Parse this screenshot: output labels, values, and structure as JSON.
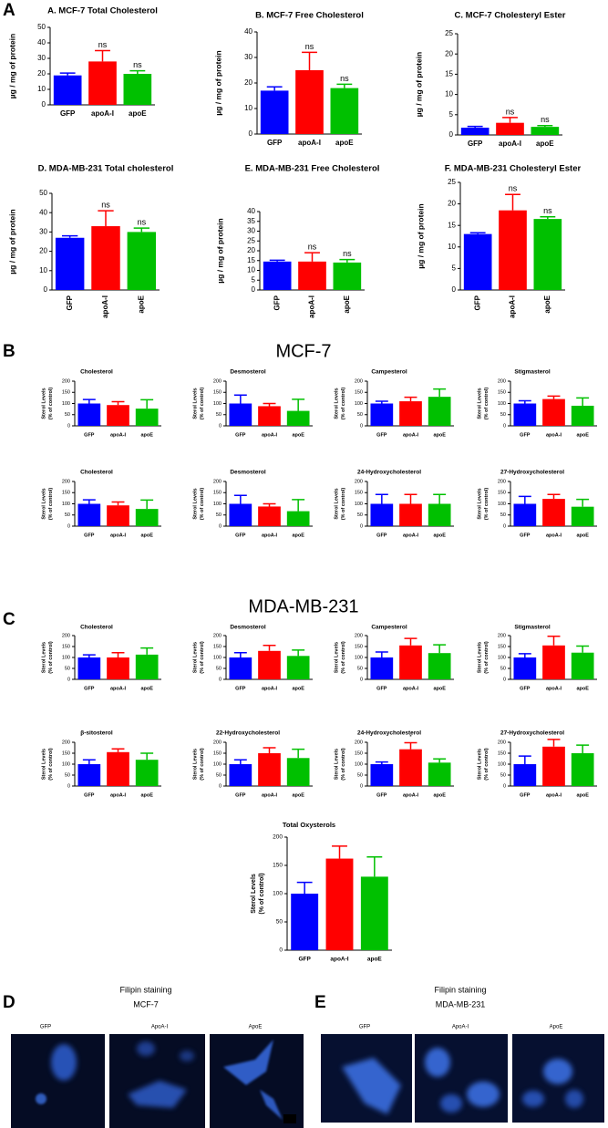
{
  "panel_labels": [
    "A",
    "B",
    "C",
    "D",
    "E"
  ],
  "section_titles": [
    "MCF-7",
    "MDA-MB-231"
  ],
  "chart_data": [
    {
      "type": "bar",
      "title": "A. MCF-7 Total Cholesterol",
      "y_label": "µg / mg of protein",
      "categories": [
        "GFP",
        "apoA-I",
        "apoE"
      ],
      "values": [
        19,
        28,
        20
      ],
      "errors": [
        1.5,
        7,
        2
      ],
      "annotations": [
        null,
        "ns",
        "ns"
      ],
      "colors": [
        "#0000ff",
        "#ff0000",
        "#00c000"
      ],
      "ylim": [
        0,
        50
      ],
      "yticks": [
        0,
        10,
        20,
        30,
        40,
        50
      ]
    },
    {
      "type": "bar",
      "title": "B. MCF-7 Free Cholesterol",
      "y_label": "µg / mg of protein",
      "categories": [
        "GFP",
        "apoA-I",
        "apoE"
      ],
      "values": [
        17,
        25,
        18
      ],
      "errors": [
        1.5,
        7,
        1.5
      ],
      "annotations": [
        null,
        "ns",
        "ns"
      ],
      "colors": [
        "#0000ff",
        "#ff0000",
        "#00c000"
      ],
      "ylim": [
        0,
        40
      ],
      "yticks": [
        0,
        10,
        20,
        30,
        40
      ]
    },
    {
      "type": "bar",
      "title": "C. MCF-7 Cholesteryl Ester",
      "y_label": "µg / mg of protein",
      "categories": [
        "GFP",
        "apoA-I",
        "apoE"
      ],
      "values": [
        1.8,
        3,
        2
      ],
      "errors": [
        0.3,
        1.3,
        0.3
      ],
      "annotations": [
        null,
        "ns",
        "ns"
      ],
      "colors": [
        "#0000ff",
        "#ff0000",
        "#00c000"
      ],
      "ylim": [
        0,
        25
      ],
      "yticks": [
        0,
        5,
        10,
        15,
        20,
        25
      ]
    },
    {
      "type": "bar",
      "title": "D. MDA-MB-231 Total cholesterol",
      "y_label": "µg / mg of protein",
      "categories": [
        "GFP",
        "apoA-I",
        "apoE"
      ],
      "values": [
        27,
        33,
        30
      ],
      "errors": [
        1,
        8,
        2
      ],
      "annotations": [
        null,
        "ns",
        "ns"
      ],
      "colors": [
        "#0000ff",
        "#ff0000",
        "#00c000"
      ],
      "ylim": [
        0,
        50
      ],
      "yticks": [
        0,
        10,
        20,
        30,
        40,
        50
      ]
    },
    {
      "type": "bar",
      "title": "E. MDA-MB-231 Free Cholesterol",
      "y_label": "µg / mg of protein",
      "categories": [
        "GFP",
        "apoA-I",
        "apoE"
      ],
      "values": [
        14.5,
        14.5,
        14
      ],
      "errors": [
        0.7,
        4.5,
        1.5
      ],
      "annotations": [
        null,
        "ns",
        "ns"
      ],
      "colors": [
        "#0000ff",
        "#ff0000",
        "#00c000"
      ],
      "ylim": [
        0,
        40
      ],
      "yticks": [
        0,
        5,
        10,
        15,
        20,
        25,
        30,
        35,
        40
      ]
    },
    {
      "type": "bar",
      "title": "F. MDA-MB-231 Cholesteryl Ester",
      "y_label": "µg / mg of protein",
      "categories": [
        "GFP",
        "apoA-I",
        "apoE"
      ],
      "values": [
        13,
        18.5,
        16.5
      ],
      "errors": [
        0.3,
        3.7,
        0.5
      ],
      "annotations": [
        null,
        "ns",
        "ns"
      ],
      "colors": [
        "#0000ff",
        "#ff0000",
        "#00c000"
      ],
      "ylim": [
        0,
        25
      ],
      "yticks": [
        0,
        5,
        10,
        15,
        20,
        25
      ]
    },
    {
      "type": "bar",
      "title": "Cholesterol",
      "y_label": [
        "Sterol Levels",
        "(% of control)"
      ],
      "categories": [
        "GFP",
        "apoA-I",
        "apoE"
      ],
      "values": [
        100,
        93,
        77
      ],
      "errors": [
        18,
        15,
        40
      ],
      "colors": [
        "#0000ff",
        "#ff0000",
        "#00c000"
      ],
      "ylim": [
        0,
        200
      ],
      "yticks": [
        0,
        50,
        100,
        150,
        200
      ]
    },
    {
      "type": "bar",
      "title": "Desmosterol",
      "y_label": [
        "Sterol Levels",
        "(% of control)"
      ],
      "categories": [
        "GFP",
        "apoA-I",
        "apoE"
      ],
      "values": [
        100,
        88,
        67
      ],
      "errors": [
        38,
        12,
        52
      ],
      "colors": [
        "#0000ff",
        "#ff0000",
        "#00c000"
      ],
      "ylim": [
        0,
        200
      ],
      "yticks": [
        0,
        50,
        100,
        150,
        200
      ]
    },
    {
      "type": "bar",
      "title": "Campesterol",
      "y_label": [
        "Sterol Levels",
        "(% of control)"
      ],
      "categories": [
        "GFP",
        "apoA-I",
        "apoE"
      ],
      "values": [
        100,
        110,
        130
      ],
      "errors": [
        10,
        18,
        35
      ],
      "colors": [
        "#0000ff",
        "#ff0000",
        "#00c000"
      ],
      "ylim": [
        0,
        200
      ],
      "yticks": [
        0,
        50,
        100,
        150,
        200
      ]
    },
    {
      "type": "bar",
      "title": "Stigmasterol",
      "y_label": [
        "Sterol Levels",
        "(% of control)"
      ],
      "categories": [
        "GFP",
        "apoA-I",
        "apoE"
      ],
      "values": [
        100,
        120,
        90
      ],
      "errors": [
        12,
        13,
        35
      ],
      "colors": [
        "#0000ff",
        "#ff0000",
        "#00c000"
      ],
      "ylim": [
        0,
        200
      ],
      "yticks": [
        0,
        50,
        100,
        150,
        200
      ]
    },
    {
      "type": "bar",
      "title": "Cholesterol",
      "y_label": [
        "Sterol Levels",
        "(% of control)"
      ],
      "categories": [
        "GFP",
        "apoA-I",
        "apoE"
      ],
      "values": [
        100,
        93,
        77
      ],
      "errors": [
        18,
        15,
        40
      ],
      "colors": [
        "#0000ff",
        "#ff0000",
        "#00c000"
      ],
      "ylim": [
        0,
        200
      ],
      "yticks": [
        0,
        50,
        100,
        150,
        200
      ]
    },
    {
      "type": "bar",
      "title": "Desmosterol",
      "y_label": [
        "Sterol Levels",
        "(% of control)"
      ],
      "categories": [
        "GFP",
        "apoA-I",
        "apoE"
      ],
      "values": [
        100,
        88,
        67
      ],
      "errors": [
        38,
        12,
        52
      ],
      "colors": [
        "#0000ff",
        "#ff0000",
        "#00c000"
      ],
      "ylim": [
        0,
        200
      ],
      "yticks": [
        0,
        50,
        100,
        150,
        200
      ]
    },
    {
      "type": "bar",
      "title": "24-Hydroxycholesterol",
      "y_label": [
        "Sterol Levels",
        "(% of control)"
      ],
      "categories": [
        "GFP",
        "apoA-I",
        "apoE"
      ],
      "values": [
        100,
        100,
        100
      ],
      "errors": [
        42,
        42,
        42
      ],
      "colors": [
        "#0000ff",
        "#ff0000",
        "#00c000"
      ],
      "ylim": [
        0,
        200
      ],
      "yticks": [
        0,
        50,
        100,
        150,
        200
      ]
    },
    {
      "type": "bar",
      "title": "27-Hydroxycholesterol",
      "y_label": [
        "Sterol Levels",
        "(% of control)"
      ],
      "categories": [
        "GFP",
        "apoA-I",
        "apoE"
      ],
      "values": [
        100,
        122,
        87
      ],
      "errors": [
        33,
        20,
        33
      ],
      "colors": [
        "#0000ff",
        "#ff0000",
        "#00c000"
      ],
      "ylim": [
        0,
        200
      ],
      "yticks": [
        0,
        50,
        100,
        150,
        200
      ]
    },
    {
      "type": "bar",
      "title": "Cholesterol",
      "y_label": [
        "Sterol Levels",
        "(% of control)"
      ],
      "categories": [
        "GFP",
        "apoA-I",
        "apoE"
      ],
      "values": [
        100,
        100,
        113
      ],
      "errors": [
        12,
        22,
        30
      ],
      "colors": [
        "#0000ff",
        "#ff0000",
        "#00c000"
      ],
      "ylim": [
        0,
        200
      ],
      "yticks": [
        0,
        50,
        100,
        150,
        200
      ]
    },
    {
      "type": "bar",
      "title": "Desmosterol",
      "y_label": [
        "Sterol Levels",
        "(% of control)"
      ],
      "categories": [
        "GFP",
        "apoA-I",
        "apoE"
      ],
      "values": [
        100,
        130,
        107
      ],
      "errors": [
        22,
        25,
        27
      ],
      "colors": [
        "#0000ff",
        "#ff0000",
        "#00c000"
      ],
      "ylim": [
        0,
        200
      ],
      "yticks": [
        0,
        50,
        100,
        150,
        200
      ]
    },
    {
      "type": "bar",
      "title": "Campesterol",
      "y_label": [
        "Sterol Levels",
        "(% of control)"
      ],
      "categories": [
        "GFP",
        "apoA-I",
        "apoE"
      ],
      "values": [
        100,
        155,
        120
      ],
      "errors": [
        25,
        32,
        38
      ],
      "colors": [
        "#0000ff",
        "#ff0000",
        "#00c000"
      ],
      "ylim": [
        0,
        200
      ],
      "yticks": [
        0,
        50,
        100,
        150,
        200
      ]
    },
    {
      "type": "bar",
      "title": "Stigmasterol",
      "y_label": [
        "Sterol Levels",
        "(% of control)"
      ],
      "categories": [
        "GFP",
        "apoA-I",
        "apoE"
      ],
      "values": [
        100,
        155,
        122
      ],
      "errors": [
        17,
        42,
        30
      ],
      "colors": [
        "#0000ff",
        "#ff0000",
        "#00c000"
      ],
      "ylim": [
        0,
        200
      ],
      "yticks": [
        0,
        50,
        100,
        150,
        200
      ]
    },
    {
      "type": "bar",
      "title": "β-sitosterol",
      "y_label": [
        "Sterol Levels",
        "(% of control)"
      ],
      "categories": [
        "GFP",
        "apoA-I",
        "apoE"
      ],
      "values": [
        100,
        155,
        120
      ],
      "errors": [
        20,
        15,
        30
      ],
      "colors": [
        "#0000ff",
        "#ff0000",
        "#00c000"
      ],
      "ylim": [
        0,
        200
      ],
      "yticks": [
        0,
        50,
        100,
        150,
        200
      ]
    },
    {
      "type": "bar",
      "title": "22-Hydroxycholesterol",
      "y_label": [
        "Sterol Levels",
        "(% of control)"
      ],
      "categories": [
        "GFP",
        "apoA-I",
        "apoE"
      ],
      "values": [
        100,
        150,
        128
      ],
      "errors": [
        20,
        25,
        40
      ],
      "colors": [
        "#0000ff",
        "#ff0000",
        "#00c000"
      ],
      "ylim": [
        0,
        200
      ],
      "yticks": [
        0,
        50,
        100,
        150,
        200
      ]
    },
    {
      "type": "bar",
      "title": "24-Hydroxycholesterol",
      "y_label": [
        "Sterol Levels",
        "(% of control)"
      ],
      "categories": [
        "GFP",
        "apoA-I",
        "apoE"
      ],
      "values": [
        100,
        168,
        107
      ],
      "errors": [
        10,
        30,
        17
      ],
      "annotations": [
        null,
        "*",
        null
      ],
      "colors": [
        "#0000ff",
        "#ff0000",
        "#00c000"
      ],
      "ylim": [
        0,
        200
      ],
      "yticks": [
        0,
        50,
        100,
        150,
        200
      ]
    },
    {
      "type": "bar",
      "title": "27-Hydroxycholesterol",
      "y_label": [
        "Sterol Levels",
        "(% of control)"
      ],
      "categories": [
        "GFP",
        "apoA-I",
        "apoE"
      ],
      "values": [
        100,
        180,
        150
      ],
      "errors": [
        37,
        33,
        37
      ],
      "colors": [
        "#0000ff",
        "#ff0000",
        "#00c000"
      ],
      "ylim": [
        0,
        200
      ],
      "yticks": [
        0,
        50,
        100,
        150,
        200
      ]
    },
    {
      "type": "bar",
      "title": "Total Oxysterols",
      "y_label": [
        "Sterol Levels",
        "(% of control)"
      ],
      "categories": [
        "GFP",
        "apoA-I",
        "apoE"
      ],
      "values": [
        100,
        162,
        130
      ],
      "errors": [
        20,
        22,
        35
      ],
      "colors": [
        "#0000ff",
        "#ff0000",
        "#00c000"
      ],
      "ylim": [
        0,
        200
      ],
      "yticks": [
        0,
        50,
        100,
        150,
        200
      ]
    }
  ],
  "images": {
    "D": {
      "title": "Filipin staining",
      "subtitle": "MCF-7",
      "labels": [
        "GFP",
        "ApoA-I",
        "ApoE"
      ]
    },
    "E": {
      "title": "Filipin staining",
      "subtitle": "MDA-MB-231",
      "labels": [
        "GFP",
        "ApoA-I",
        "ApoE"
      ]
    }
  }
}
